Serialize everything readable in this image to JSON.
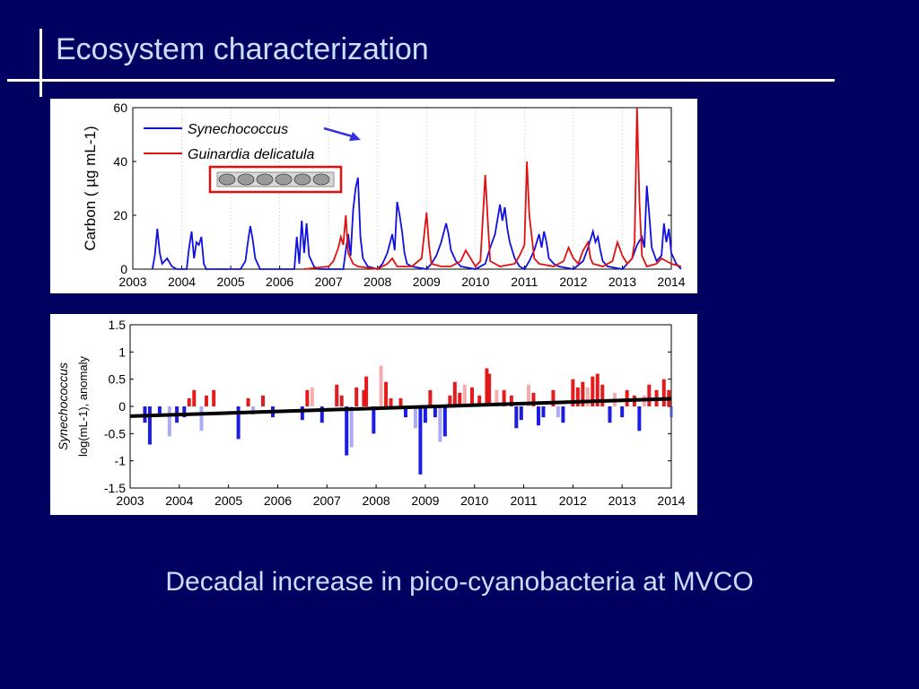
{
  "slide": {
    "title": "Ecosystem characterization",
    "caption": "Decadal increase in pico-cyanobacteria at MVCO"
  },
  "colors": {
    "background": "#000060",
    "title_text": "#c8e0ff",
    "synechococcus": "#1010e0",
    "guinardia": "#e01010",
    "trend": "#000000"
  },
  "chart_data": [
    {
      "type": "line",
      "ylabel": "Carbon ( µg mL-1)",
      "ylim": [
        0,
        60
      ],
      "yticks": [
        "0",
        "20",
        "40",
        "60"
      ],
      "xlim": [
        2003,
        2014
      ],
      "xticks": [
        "2003",
        "2004",
        "2005",
        "2006",
        "2007",
        "2008",
        "2009",
        "2010",
        "2011",
        "2012",
        "2013",
        "2014"
      ],
      "legend": [
        {
          "name": "Synechococcus",
          "color": "#1010e0"
        },
        {
          "name": "Guinardia delicatula",
          "color": "#e01010"
        }
      ],
      "inset_image": "guinardia-chain-micrograph",
      "series": [
        {
          "name": "Synechococcus",
          "color": "#1010e0",
          "points": [
            [
              2003.4,
              0
            ],
            [
              2003.45,
              5
            ],
            [
              2003.5,
              15
            ],
            [
              2003.55,
              6
            ],
            [
              2003.6,
              2
            ],
            [
              2003.7,
              4
            ],
            [
              2003.8,
              1
            ],
            [
              2003.9,
              0
            ],
            [
              2004.1,
              0
            ],
            [
              2004.15,
              8
            ],
            [
              2004.2,
              14
            ],
            [
              2004.25,
              4
            ],
            [
              2004.3,
              10
            ],
            [
              2004.35,
              9
            ],
            [
              2004.4,
              12
            ],
            [
              2004.45,
              2
            ],
            [
              2004.5,
              0
            ],
            [
              2005.2,
              0
            ],
            [
              2005.3,
              3
            ],
            [
              2005.35,
              10
            ],
            [
              2005.4,
              16
            ],
            [
              2005.45,
              11
            ],
            [
              2005.5,
              4
            ],
            [
              2005.6,
              0
            ],
            [
              2006.3,
              0
            ],
            [
              2006.35,
              12
            ],
            [
              2006.4,
              2
            ],
            [
              2006.45,
              18
            ],
            [
              2006.5,
              6
            ],
            [
              2006.55,
              17
            ],
            [
              2006.6,
              5
            ],
            [
              2006.7,
              1
            ],
            [
              2006.8,
              0
            ],
            [
              2007.3,
              0
            ],
            [
              2007.35,
              7
            ],
            [
              2007.4,
              13
            ],
            [
              2007.45,
              5
            ],
            [
              2007.5,
              22
            ],
            [
              2007.55,
              30
            ],
            [
              2007.6,
              34
            ],
            [
              2007.65,
              12
            ],
            [
              2007.7,
              4
            ],
            [
              2007.8,
              1
            ],
            [
              2008.0,
              0
            ],
            [
              2008.1,
              2
            ],
            [
              2008.2,
              6
            ],
            [
              2008.3,
              13
            ],
            [
              2008.35,
              7
            ],
            [
              2008.4,
              25
            ],
            [
              2008.45,
              20
            ],
            [
              2008.5,
              14
            ],
            [
              2008.55,
              6
            ],
            [
              2008.6,
              2
            ],
            [
              2008.7,
              1
            ],
            [
              2009.0,
              0
            ],
            [
              2009.1,
              2
            ],
            [
              2009.2,
              5
            ],
            [
              2009.3,
              10
            ],
            [
              2009.4,
              17
            ],
            [
              2009.45,
              13
            ],
            [
              2009.5,
              7
            ],
            [
              2009.6,
              3
            ],
            [
              2009.7,
              1
            ],
            [
              2010.0,
              0
            ],
            [
              2010.2,
              2
            ],
            [
              2010.3,
              8
            ],
            [
              2010.4,
              13
            ],
            [
              2010.5,
              24
            ],
            [
              2010.55,
              18
            ],
            [
              2010.6,
              23
            ],
            [
              2010.65,
              15
            ],
            [
              2010.7,
              10
            ],
            [
              2010.8,
              4
            ],
            [
              2010.9,
              1
            ],
            [
              2011.0,
              0
            ],
            [
              2011.1,
              3
            ],
            [
              2011.2,
              7
            ],
            [
              2011.3,
              13
            ],
            [
              2011.35,
              8
            ],
            [
              2011.4,
              14
            ],
            [
              2011.45,
              10
            ],
            [
              2011.5,
              4
            ],
            [
              2011.6,
              2
            ],
            [
              2011.7,
              1
            ],
            [
              2012.0,
              0
            ],
            [
              2012.2,
              3
            ],
            [
              2012.3,
              8
            ],
            [
              2012.4,
              14
            ],
            [
              2012.45,
              10
            ],
            [
              2012.5,
              12
            ],
            [
              2012.55,
              7
            ],
            [
              2012.6,
              3
            ],
            [
              2012.7,
              1
            ],
            [
              2013.0,
              0
            ],
            [
              2013.2,
              4
            ],
            [
              2013.3,
              9
            ],
            [
              2013.4,
              12
            ],
            [
              2013.45,
              8
            ],
            [
              2013.5,
              31
            ],
            [
              2013.55,
              20
            ],
            [
              2013.6,
              8
            ],
            [
              2013.7,
              3
            ],
            [
              2013.8,
              5
            ],
            [
              2013.85,
              17
            ],
            [
              2013.9,
              10
            ],
            [
              2013.95,
              15
            ],
            [
              2014.0,
              6
            ],
            [
              2014.1,
              2
            ],
            [
              2014.2,
              0
            ]
          ]
        },
        {
          "name": "Guinardia delicatula",
          "color": "#e01010",
          "points": [
            [
              2006.5,
              0
            ],
            [
              2007.0,
              1
            ],
            [
              2007.1,
              3
            ],
            [
              2007.2,
              8
            ],
            [
              2007.25,
              12
            ],
            [
              2007.3,
              9
            ],
            [
              2007.35,
              20
            ],
            [
              2007.4,
              6
            ],
            [
              2007.5,
              2
            ],
            [
              2007.6,
              1
            ],
            [
              2008.0,
              0
            ],
            [
              2008.2,
              2
            ],
            [
              2008.3,
              4
            ],
            [
              2008.4,
              1
            ],
            [
              2008.7,
              1
            ],
            [
              2008.9,
              4
            ],
            [
              2009.0,
              21
            ],
            [
              2009.05,
              9
            ],
            [
              2009.1,
              2
            ],
            [
              2009.3,
              1
            ],
            [
              2009.5,
              1
            ],
            [
              2009.7,
              3
            ],
            [
              2009.8,
              7
            ],
            [
              2009.9,
              4
            ],
            [
              2010.0,
              1
            ],
            [
              2010.1,
              3
            ],
            [
              2010.2,
              35
            ],
            [
              2010.25,
              18
            ],
            [
              2010.3,
              3
            ],
            [
              2010.5,
              1
            ],
            [
              2010.8,
              2
            ],
            [
              2010.9,
              5
            ],
            [
              2011.0,
              9
            ],
            [
              2011.05,
              40
            ],
            [
              2011.1,
              20
            ],
            [
              2011.2,
              4
            ],
            [
              2011.3,
              2
            ],
            [
              2011.6,
              1
            ],
            [
              2011.8,
              3
            ],
            [
              2011.9,
              8
            ],
            [
              2012.0,
              4
            ],
            [
              2012.1,
              2
            ],
            [
              2012.2,
              7
            ],
            [
              2012.3,
              10
            ],
            [
              2012.35,
              4
            ],
            [
              2012.4,
              2
            ],
            [
              2012.6,
              1
            ],
            [
              2012.8,
              3
            ],
            [
              2012.9,
              10
            ],
            [
              2013.0,
              5
            ],
            [
              2013.1,
              2
            ],
            [
              2013.2,
              4
            ],
            [
              2013.25,
              10
            ],
            [
              2013.3,
              60
            ],
            [
              2013.35,
              25
            ],
            [
              2013.4,
              5
            ],
            [
              2013.5,
              1
            ],
            [
              2013.7,
              2
            ],
            [
              2013.8,
              4
            ],
            [
              2013.9,
              3
            ],
            [
              2014.0,
              2
            ],
            [
              2014.2,
              1
            ]
          ]
        }
      ]
    },
    {
      "type": "bar",
      "ylabel_italic": "Synechococcus",
      "ylabel": "log(mL-1), anomaly",
      "ylim": [
        -1.5,
        1.5
      ],
      "yticks": [
        "-1.5",
        "-1",
        "-0.5",
        "0",
        "0.5",
        "1",
        "1.5"
      ],
      "xlim": [
        2003,
        2014
      ],
      "xticks": [
        "2003",
        "2004",
        "2005",
        "2006",
        "2007",
        "2008",
        "2009",
        "2010",
        "2011",
        "2012",
        "2013",
        "2014"
      ],
      "trend": {
        "start": [
          2003,
          -0.18
        ],
        "end": [
          2014,
          0.14
        ]
      },
      "anomaly": [
        [
          2003.3,
          -0.3
        ],
        [
          2003.4,
          -0.7
        ],
        [
          2003.6,
          -0.15
        ],
        [
          2003.8,
          -0.55
        ],
        [
          2003.95,
          -0.3
        ],
        [
          2004.1,
          -0.2
        ],
        [
          2004.2,
          0.15
        ],
        [
          2004.3,
          0.3
        ],
        [
          2004.45,
          -0.45
        ],
        [
          2004.55,
          0.2
        ],
        [
          2004.7,
          0.3
        ],
        [
          2005.2,
          -0.6
        ],
        [
          2005.4,
          0.15
        ],
        [
          2005.5,
          -0.15
        ],
        [
          2005.7,
          0.2
        ],
        [
          2005.9,
          -0.2
        ],
        [
          2006.5,
          -0.25
        ],
        [
          2006.6,
          0.3
        ],
        [
          2006.7,
          0.35
        ],
        [
          2006.9,
          -0.3
        ],
        [
          2007.2,
          0.4
        ],
        [
          2007.3,
          0.2
        ],
        [
          2007.4,
          -0.9
        ],
        [
          2007.5,
          -0.75
        ],
        [
          2007.6,
          0.35
        ],
        [
          2007.75,
          0.3
        ],
        [
          2007.8,
          0.55
        ],
        [
          2007.95,
          -0.5
        ],
        [
          2008.1,
          0.75
        ],
        [
          2008.2,
          0.45
        ],
        [
          2008.3,
          0.15
        ],
        [
          2008.5,
          0.15
        ],
        [
          2008.6,
          -0.2
        ],
        [
          2008.8,
          -0.4
        ],
        [
          2008.9,
          -1.25
        ],
        [
          2009.0,
          -0.3
        ],
        [
          2009.1,
          0.3
        ],
        [
          2009.2,
          -0.2
        ],
        [
          2009.3,
          -0.65
        ],
        [
          2009.4,
          -0.55
        ],
        [
          2009.5,
          0.2
        ],
        [
          2009.6,
          0.45
        ],
        [
          2009.7,
          0.25
        ],
        [
          2009.8,
          0.4
        ],
        [
          2009.95,
          0.35
        ],
        [
          2010.1,
          0.2
        ],
        [
          2010.25,
          0.7
        ],
        [
          2010.3,
          0.6
        ],
        [
          2010.45,
          0.3
        ],
        [
          2010.6,
          0.3
        ],
        [
          2010.75,
          0.2
        ],
        [
          2010.85,
          -0.4
        ],
        [
          2010.95,
          -0.25
        ],
        [
          2011.1,
          0.4
        ],
        [
          2011.2,
          0.25
        ],
        [
          2011.3,
          -0.35
        ],
        [
          2011.4,
          -0.2
        ],
        [
          2011.6,
          0.3
        ],
        [
          2011.7,
          -0.2
        ],
        [
          2011.8,
          -0.3
        ],
        [
          2012.0,
          0.5
        ],
        [
          2012.1,
          0.35
        ],
        [
          2012.2,
          0.45
        ],
        [
          2012.3,
          0.35
        ],
        [
          2012.4,
          0.55
        ],
        [
          2012.5,
          0.6
        ],
        [
          2012.6,
          0.4
        ],
        [
          2012.75,
          -0.3
        ],
        [
          2012.85,
          0.25
        ],
        [
          2013.0,
          -0.2
        ],
        [
          2013.1,
          0.3
        ],
        [
          2013.25,
          0.2
        ],
        [
          2013.35,
          -0.45
        ],
        [
          2013.45,
          0.2
        ],
        [
          2013.55,
          0.4
        ],
        [
          2013.7,
          0.3
        ],
        [
          2013.85,
          0.5
        ],
        [
          2013.95,
          0.3
        ],
        [
          2014.0,
          -0.2
        ]
      ]
    }
  ]
}
